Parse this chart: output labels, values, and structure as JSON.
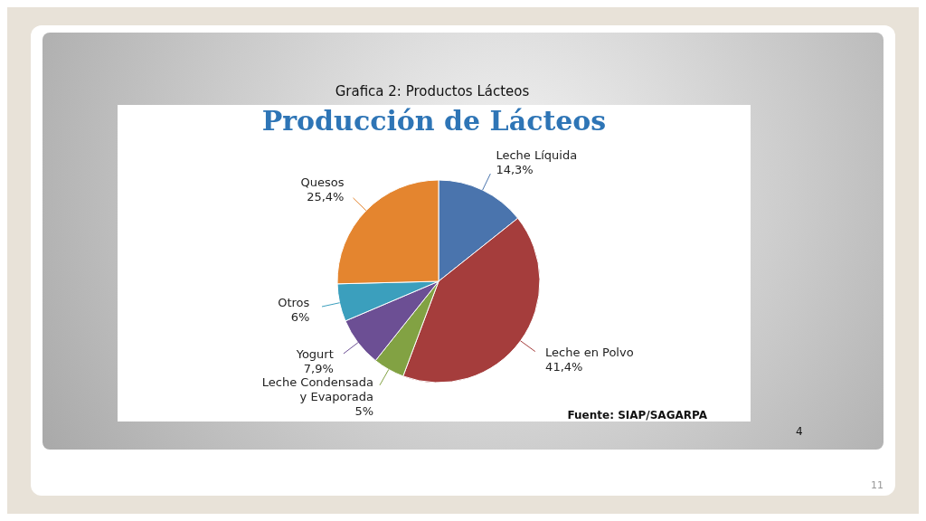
{
  "chart_data": {
    "type": "pie",
    "title": "Grafica 2: Productos Lácteos",
    "subtitle": "Producción de Lácteos",
    "categories": [
      "Leche Líquida",
      "Leche en Polvo",
      "Leche Condensada y Evaporada",
      "Yogurt",
      "Otros",
      "Quesos"
    ],
    "values": [
      14.3,
      41.4,
      5,
      7.9,
      6,
      25.4
    ],
    "value_labels": [
      "14,3%",
      "41,4%",
      "5%",
      "7,9%",
      "6%",
      "25,4%"
    ],
    "colors": [
      "#4a74ad",
      "#a53d3c",
      "#82a243",
      "#6c4f94",
      "#3b9fbd",
      "#e4852f"
    ],
    "annotations": [
      "Fuente: SIAP/SAGARPA",
      "4",
      "11"
    ]
  }
}
